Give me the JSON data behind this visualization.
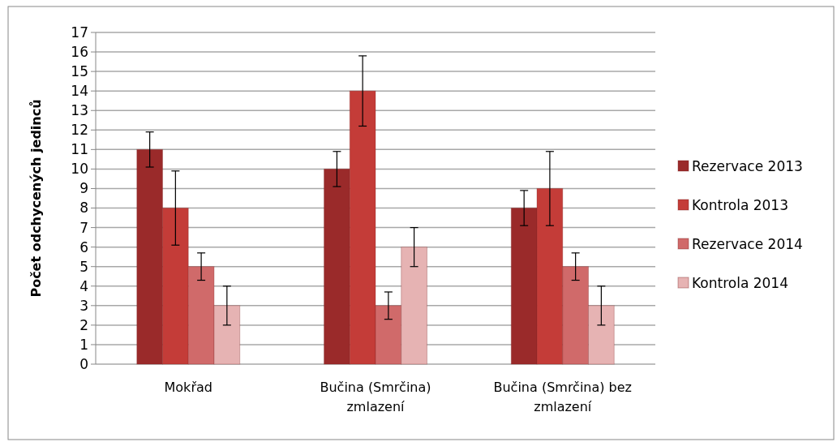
{
  "chart_data": {
    "type": "bar",
    "ylabel": "Počet odchycených jedinců",
    "categories": [
      "Mokřad",
      "Bučina (Smrčina) zmlazení",
      "Bučina (Smrčina) bez zmlazení"
    ],
    "series": [
      {
        "name": "Rezervace 2013",
        "color": "#9a2a2a",
        "values": [
          11,
          10,
          8
        ],
        "errors": [
          0.9,
          0.9,
          0.9
        ]
      },
      {
        "name": "Kontrola 2013",
        "color": "#c43c38",
        "values": [
          8,
          14,
          9
        ],
        "errors": [
          1.9,
          1.8,
          1.9
        ]
      },
      {
        "name": "Rezervace 2014",
        "color": "#d06a6a",
        "values": [
          5,
          3,
          5
        ],
        "errors": [
          0.7,
          0.7,
          0.7
        ]
      },
      {
        "name": "Kontrola 2014",
        "color": "#e6b3b3",
        "values": [
          3,
          6,
          3
        ],
        "errors": [
          1,
          1,
          1
        ]
      }
    ],
    "ylim": [
      0,
      17
    ],
    "yticks": [
      0,
      1,
      2,
      3,
      4,
      5,
      6,
      7,
      8,
      9,
      10,
      11,
      12,
      13,
      14,
      15,
      16,
      17
    ],
    "grid": "y",
    "legend": "right"
  }
}
